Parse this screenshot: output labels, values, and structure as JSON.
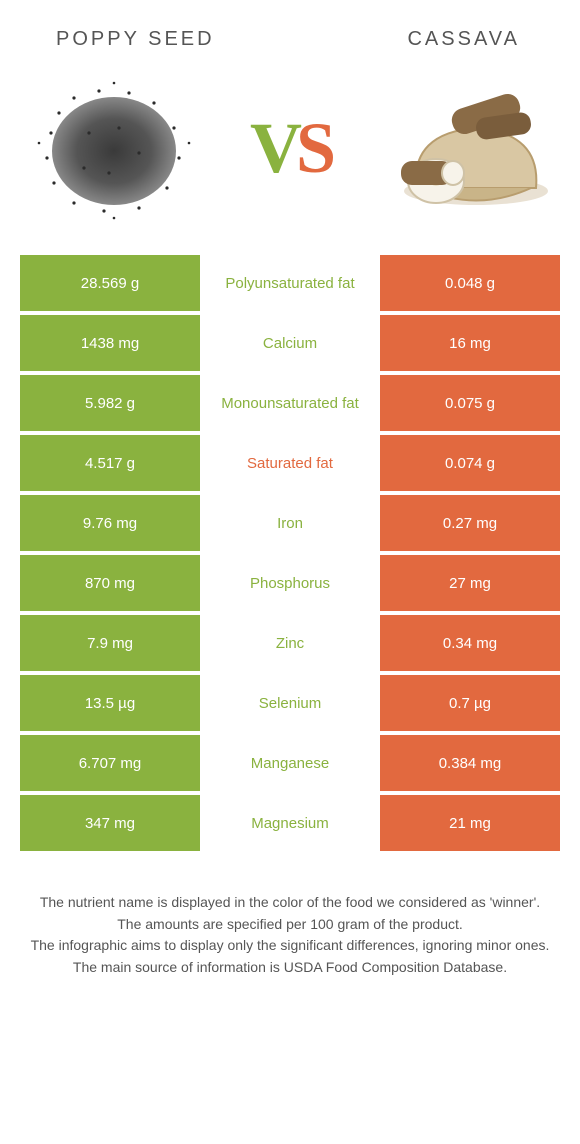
{
  "colors": {
    "green": "#8ab23f",
    "orange": "#e2693f",
    "mid_text_default": "#555555"
  },
  "titles": {
    "left": "POPPY SEED",
    "right": "CASSAVA"
  },
  "vs": {
    "v": "V",
    "s": "S"
  },
  "rows": [
    {
      "left": "28.569 g",
      "label": "Polyunsaturated fat",
      "right": "0.048 g",
      "winner": "left"
    },
    {
      "left": "1438 mg",
      "label": "Calcium",
      "right": "16 mg",
      "winner": "left"
    },
    {
      "left": "5.982 g",
      "label": "Monounsaturated fat",
      "right": "0.075 g",
      "winner": "left"
    },
    {
      "left": "4.517 g",
      "label": "Saturated fat",
      "right": "0.074 g",
      "winner": "right"
    },
    {
      "left": "9.76 mg",
      "label": "Iron",
      "right": "0.27 mg",
      "winner": "left"
    },
    {
      "left": "870 mg",
      "label": "Phosphorus",
      "right": "27 mg",
      "winner": "left"
    },
    {
      "left": "7.9 mg",
      "label": "Zinc",
      "right": "0.34 mg",
      "winner": "left"
    },
    {
      "left": "13.5 µg",
      "label": "Selenium",
      "right": "0.7 µg",
      "winner": "left"
    },
    {
      "left": "6.707 mg",
      "label": "Manganese",
      "right": "0.384 mg",
      "winner": "left"
    },
    {
      "left": "347 mg",
      "label": "Magnesium",
      "right": "21 mg",
      "winner": "left"
    }
  ],
  "footer": [
    "The nutrient name is displayed in the color of the food we considered as 'winner'.",
    "The amounts are specified per 100 gram of the product.",
    "The infographic aims to display only the significant differences, ignoring minor ones.",
    "The main source of information is USDA Food Composition Database."
  ]
}
